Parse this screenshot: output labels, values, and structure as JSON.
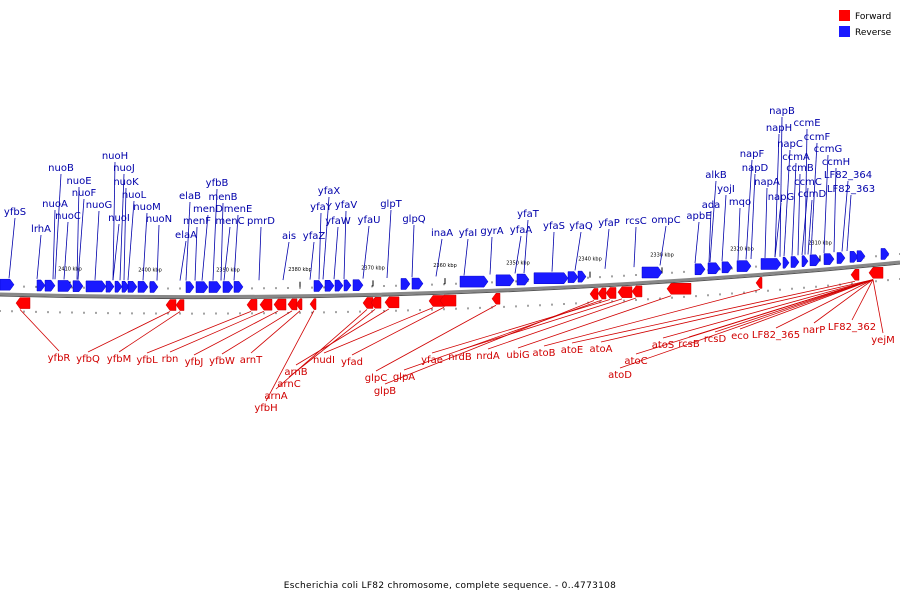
{
  "legend": [
    {
      "label": "Forward",
      "color": "#ff0000"
    },
    {
      "label": "Reverse",
      "color": "#1a1aff"
    }
  ],
  "caption": "Escherichia coli LF82 chromosome, complete sequence. - 0..4773108",
  "colors": {
    "forward": "#ff0000",
    "reverse": "#1a1aff",
    "forward_label": "#d00000",
    "reverse_label": "#0000aa",
    "backbone": "#888888"
  },
  "ticks": [
    "2410 kbp",
    "2400 kbp",
    "2390 kbp",
    "2380 kbp",
    "2370 kbp",
    "2360 kbp",
    "2350 kbp",
    "2340 kbp",
    "2330 kbp",
    "2320 kbp",
    "2310 kbp"
  ],
  "reverse_genes": [
    "yfbS",
    "lrhA",
    "nuoA",
    "nuoB",
    "nuoC",
    "nuoE",
    "nuoF",
    "nuoG",
    "nuoH",
    "nuoI",
    "nuoJ",
    "nuoK",
    "nuoL",
    "nuoM",
    "nuoN",
    "elaA",
    "elaB",
    "menF",
    "menD",
    "yfbB",
    "menB",
    "menC",
    "menE",
    "pmrD",
    "ais",
    "yfaZ",
    "yfaY",
    "yfaX",
    "yfaW",
    "yfaV",
    "yfaU",
    "glpT",
    "glpQ",
    "inaA",
    "yfaI",
    "gyrA",
    "yfaA",
    "yfaT",
    "yfaS",
    "yfaQ",
    "yfaP",
    "rcsC",
    "ompC",
    "apbE",
    "ada",
    "alkB",
    "yojI",
    "mqo",
    "napF",
    "napD",
    "napA",
    "napG",
    "napH",
    "napB",
    "napC",
    "ccmA",
    "ccmB",
    "ccmC",
    "ccmD",
    "ccmE",
    "ccmF",
    "ccmG",
    "ccmH",
    "LF82_364",
    "LF82_363"
  ],
  "forward_genes": [
    "yfbR",
    "yfbQ",
    "yfbM",
    "yfbL",
    "rbn",
    "yfbJ",
    "yfbW",
    "arnT",
    "yfbH",
    "arnA",
    "arnC",
    "arnB",
    "nudI",
    "yfad",
    "glpC",
    "glpB",
    "glpA",
    "yfae",
    "nrdB",
    "nrdA",
    "ubiG",
    "atoB",
    "atoE",
    "atoA",
    "atoD",
    "atoC",
    "atoS",
    "rcsB",
    "rcsD",
    "eco",
    "LF82_365",
    "narP",
    "LF82_362",
    "yejM"
  ]
}
